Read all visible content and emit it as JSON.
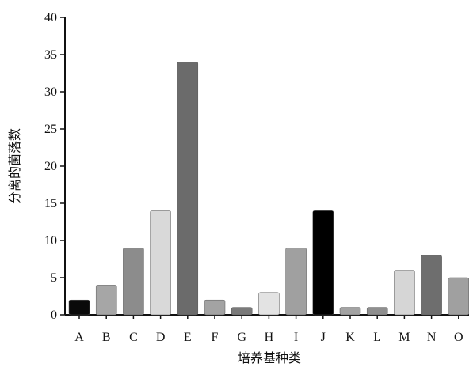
{
  "chart_data": {
    "type": "bar",
    "title": "",
    "xlabel": "培养基种类",
    "ylabel": "分离的菌落数",
    "ylim": [
      0,
      40
    ],
    "yticks": [
      0,
      5,
      10,
      15,
      20,
      25,
      30,
      35,
      40
    ],
    "grid": false,
    "legend": "none",
    "categories": [
      "A",
      "B",
      "C",
      "D",
      "E",
      "F",
      "G",
      "H",
      "I",
      "J",
      "K",
      "L",
      "M",
      "N",
      "O"
    ],
    "values": [
      2,
      4,
      9,
      14,
      34,
      2,
      1,
      3,
      9,
      14,
      1,
      1,
      6,
      8,
      5
    ],
    "colors": [
      "#0a0a0a",
      "#a6a6a6",
      "#8c8c8c",
      "#d9d9d9",
      "#6b6b6b",
      "#a3a3a3",
      "#7a7a7a",
      "#e3e3e3",
      "#a0a0a0",
      "#000000",
      "#a3a3a3",
      "#8f8f8f",
      "#d6d6d6",
      "#6e6e6e",
      "#a0a0a0"
    ]
  }
}
